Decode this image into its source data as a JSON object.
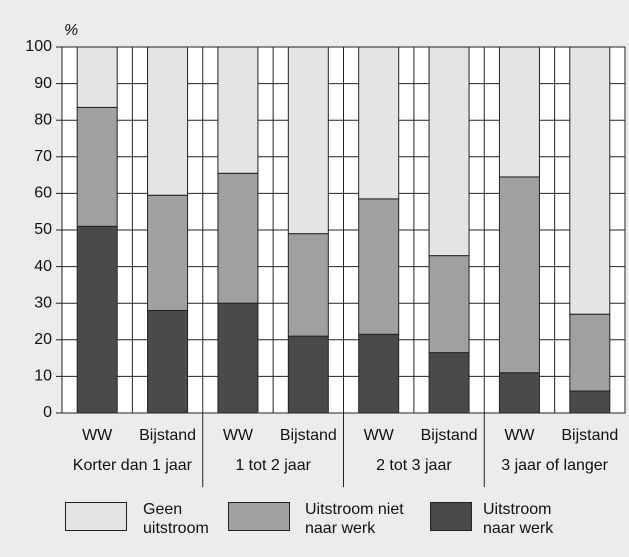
{
  "chart_data": {
    "type": "stacked-bar",
    "y_label": "%",
    "categories": [
      "WW",
      "Bijstand",
      "WW",
      "Bijstand",
      "WW",
      "Bijstand",
      "WW",
      "Bijstand"
    ],
    "groups": [
      "Korter dan 1 jaar",
      "1 tot 2 jaar",
      "2 tot 3 jaar",
      "3 jaar of langer"
    ],
    "series": [
      {
        "name": "Uitstroom naar werk",
        "color": "#4a4a4a",
        "values": [
          51,
          28,
          30,
          21,
          21.5,
          16.5,
          11,
          6
        ]
      },
      {
        "name": "Uitstroom niet naar werk",
        "color": "#a0a0a0",
        "values": [
          32.5,
          31.5,
          35.5,
          28,
          37,
          26.5,
          53.5,
          21
        ]
      },
      {
        "name": "Geen uitstroom",
        "color": "#e4e4e4",
        "values": [
          16.5,
          40.5,
          34.5,
          51,
          41.5,
          57,
          35.5,
          73
        ]
      }
    ],
    "ylim": [
      0,
      100
    ],
    "yticks": [
      0,
      10,
      20,
      30,
      40,
      50,
      60,
      70,
      80,
      90,
      100
    ],
    "grid": true
  }
}
